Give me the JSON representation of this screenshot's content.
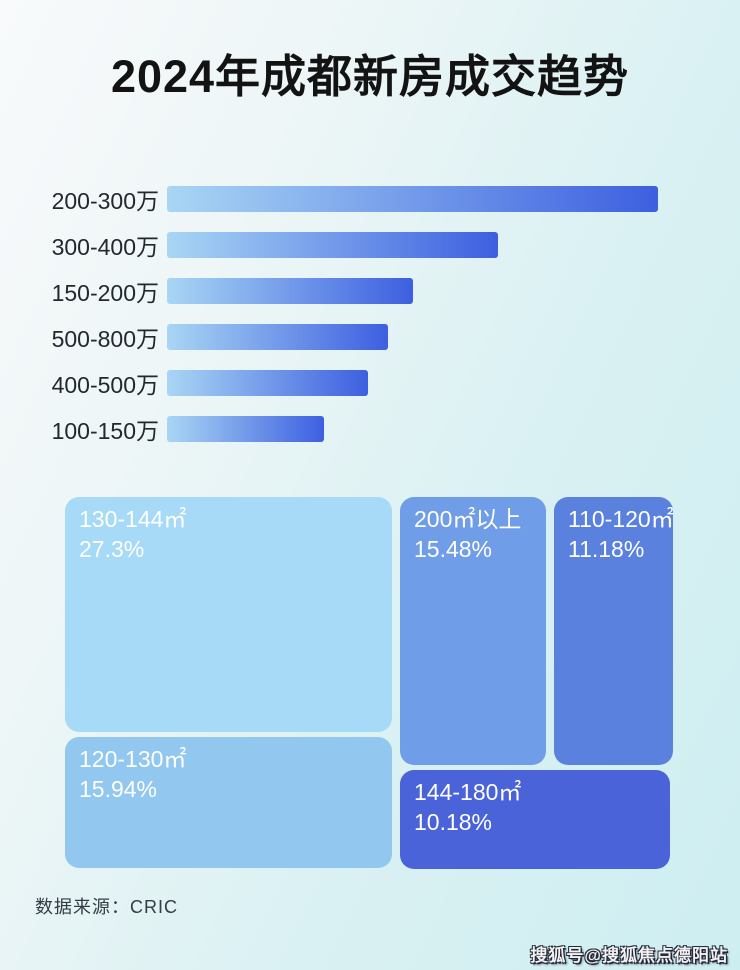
{
  "page": {
    "title": "2024年成都新房成交趋势",
    "source_label": "数据来源：CRIC",
    "watermark": "搜狐号@搜狐焦点德阳站"
  },
  "colors": {
    "background_start": "#f8fafb",
    "background_end": "#cdeef1",
    "bar_gradient_start": "#a9d6f4",
    "bar_gradient_end": "#3d5fe0",
    "title_text": "#131313",
    "bar_label_text": "#23282f",
    "treemap_text": "#ffffff",
    "source_text": "#333c46"
  },
  "chart_data": [
    {
      "type": "bar",
      "orientation": "horizontal",
      "title": "2024年成都新房成交趋势",
      "categories": [
        "200-300万",
        "300-400万",
        "150-200万",
        "500-800万",
        "400-500万",
        "100-150万"
      ],
      "values_pct_of_max": [
        100,
        67.5,
        50,
        45,
        41,
        32
      ],
      "value_labels_shown": false,
      "axis": "none (no numeric axis shown; bar lengths estimated relative to longest bar = 100)",
      "legend": "none",
      "grid": false
    },
    {
      "type": "treemap",
      "title": "",
      "items": [
        {
          "label": "130-144㎡",
          "value_pct": 27.3,
          "display": "27.3%",
          "color": "#a6daf7"
        },
        {
          "label": "120-130㎡",
          "value_pct": 15.94,
          "display": "15.94%",
          "color": "#92c7ef"
        },
        {
          "label": "200㎡以上",
          "value_pct": 15.48,
          "display": "15.48%",
          "color": "#6f9de7"
        },
        {
          "label": "110-120㎡",
          "value_pct": 11.18,
          "display": "11.18%",
          "color": "#5b81de"
        },
        {
          "label": "144-180㎡",
          "value_pct": 10.18,
          "display": "10.18%",
          "color": "#4a63d8"
        }
      ],
      "legend": "none"
    }
  ]
}
